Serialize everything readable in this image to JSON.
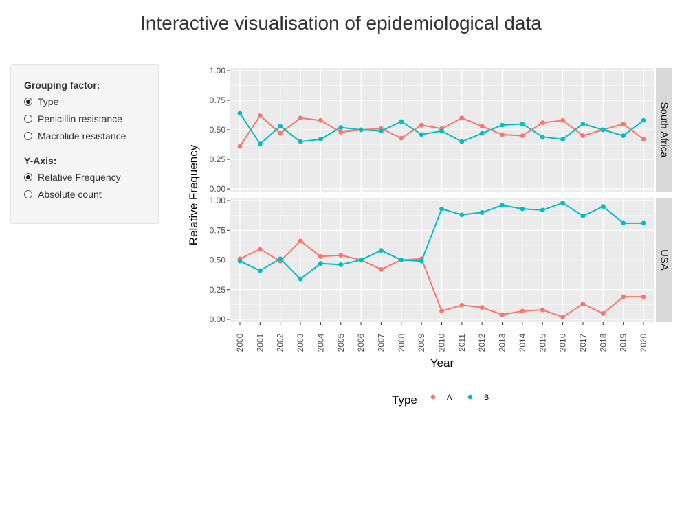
{
  "page": {
    "title": "Interactive visualisation of epidemiological data"
  },
  "controls": {
    "grouping": {
      "label": "Grouping factor:",
      "options": [
        "Type",
        "Penicillin resistance",
        "Macrolide resistance"
      ],
      "selected": "Type"
    },
    "yaxis": {
      "label": "Y-Axis:",
      "options": [
        "Relative Frequency",
        "Absolute count"
      ],
      "selected": "Relative Frequency"
    }
  },
  "chart_data": {
    "type": "line",
    "xlabel": "Year",
    "ylabel": "Relative Frequency",
    "x": [
      2000,
      2001,
      2002,
      2003,
      2004,
      2005,
      2006,
      2007,
      2008,
      2009,
      2010,
      2011,
      2012,
      2013,
      2014,
      2015,
      2016,
      2017,
      2018,
      2019,
      2020
    ],
    "ylim": [
      0,
      1
    ],
    "yticks": [
      "0.00",
      "0.25",
      "0.50",
      "0.75",
      "1.00"
    ],
    "grid": true,
    "legend": {
      "title": "Type",
      "placement": "bottom",
      "entries": [
        "A",
        "B"
      ]
    },
    "series_colors": {
      "A": "#F8766D",
      "B": "#00BFC4"
    },
    "facets": [
      {
        "label": "South Africa",
        "series": [
          {
            "name": "A",
            "values": [
              0.36,
              0.62,
              0.47,
              0.6,
              0.58,
              0.48,
              0.5,
              0.51,
              0.43,
              0.54,
              0.51,
              0.6,
              0.53,
              0.46,
              0.45,
              0.56,
              0.58,
              0.45,
              0.5,
              0.55,
              0.42
            ]
          },
          {
            "name": "B",
            "values": [
              0.64,
              0.38,
              0.53,
              0.4,
              0.42,
              0.52,
              0.5,
              0.49,
              0.57,
              0.46,
              0.49,
              0.4,
              0.47,
              0.54,
              0.55,
              0.44,
              0.42,
              0.55,
              0.5,
              0.45,
              0.58
            ]
          }
        ]
      },
      {
        "label": "USA",
        "series": [
          {
            "name": "A",
            "values": [
              0.51,
              0.59,
              0.49,
              0.66,
              0.53,
              0.54,
              0.5,
              0.42,
              0.5,
              0.51,
              0.07,
              0.12,
              0.1,
              0.04,
              0.07,
              0.08,
              0.02,
              0.13,
              0.05,
              0.19,
              0.19
            ]
          },
          {
            "name": "B",
            "values": [
              0.49,
              0.41,
              0.51,
              0.34,
              0.47,
              0.46,
              0.5,
              0.58,
              0.5,
              0.49,
              0.93,
              0.88,
              0.9,
              0.96,
              0.93,
              0.92,
              0.98,
              0.87,
              0.95,
              0.81,
              0.81
            ]
          }
        ]
      }
    ]
  }
}
